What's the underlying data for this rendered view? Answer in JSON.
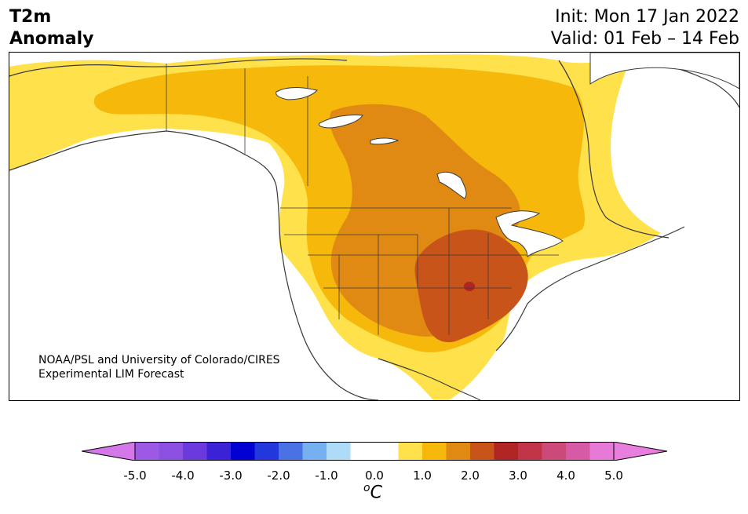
{
  "header": {
    "variable": "T2m",
    "type": "Anomaly",
    "init": "Init: Mon 17 Jan 2022",
    "valid": "Valid: 01 Feb – 14 Feb"
  },
  "credit": {
    "line1": "NOAA/PSL and University of Colorado/CIRES",
    "line2": "Experimental LIM Forecast"
  },
  "colorbar": {
    "unit_prefix": "o",
    "unit": "C",
    "ticks": [
      "-5.0",
      "-4.0",
      "-3.0",
      "-2.0",
      "-1.0",
      "0.0",
      "1.0",
      "2.0",
      "3.0",
      "4.0",
      "5.0"
    ],
    "bins": [
      {
        "from": -5.0,
        "to": -4.5,
        "color": "#9d59e6"
      },
      {
        "from": -4.5,
        "to": -4.0,
        "color": "#8b4fe2"
      },
      {
        "from": -4.0,
        "to": -3.5,
        "color": "#6a3adf"
      },
      {
        "from": -3.5,
        "to": -3.0,
        "color": "#3b22d6"
      },
      {
        "from": -3.0,
        "to": -2.5,
        "color": "#0000d2"
      },
      {
        "from": -2.5,
        "to": -2.0,
        "color": "#2237dc"
      },
      {
        "from": -2.0,
        "to": -1.5,
        "color": "#4a72e4"
      },
      {
        "from": -1.5,
        "to": -1.0,
        "color": "#76b0f0"
      },
      {
        "from": -1.0,
        "to": -0.5,
        "color": "#aedbf8"
      },
      {
        "from": -0.5,
        "to": 0.5,
        "color": "#ffffff"
      },
      {
        "from": 0.5,
        "to": 1.0,
        "color": "#ffe14c"
      },
      {
        "from": 1.0,
        "to": 1.5,
        "color": "#f5b80b"
      },
      {
        "from": 1.5,
        "to": 2.0,
        "color": "#e08a14"
      },
      {
        "from": 2.0,
        "to": 2.5,
        "color": "#c8541a"
      },
      {
        "from": 2.5,
        "to": 3.0,
        "color": "#b02424"
      },
      {
        "from": 3.0,
        "to": 3.5,
        "color": "#c23448"
      },
      {
        "from": 3.5,
        "to": 4.0,
        "color": "#cc4a7a"
      },
      {
        "from": 4.0,
        "to": 4.5,
        "color": "#d75aa6"
      },
      {
        "from": 4.5,
        "to": 5.0,
        "color": "#e67ad6"
      }
    ],
    "under_color": "#d477e8",
    "over_color": "#e87fde"
  },
  "map": {
    "region": "North America",
    "field": "2m temperature anomaly",
    "shading_levels": [
      {
        "level": "0.5 to 1.0",
        "color": "#ffe14c"
      },
      {
        "level": "1.0 to 1.5",
        "color": "#f5b80b"
      },
      {
        "level": "1.5 to 2.0",
        "color": "#e08a14"
      },
      {
        "level": "2.0 to 2.5",
        "color": "#c8541a"
      },
      {
        "level": "2.5 to 3.0",
        "color": "#b02424"
      }
    ],
    "coastline_color": "#3a3a3a"
  }
}
